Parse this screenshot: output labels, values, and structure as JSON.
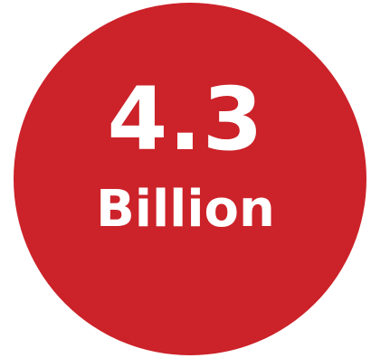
{
  "stat": {
    "value": "4.3",
    "unit": "Billion"
  },
  "colors": {
    "circle": "#cc2229",
    "text": "#ffffff",
    "background": "#ffffff"
  }
}
